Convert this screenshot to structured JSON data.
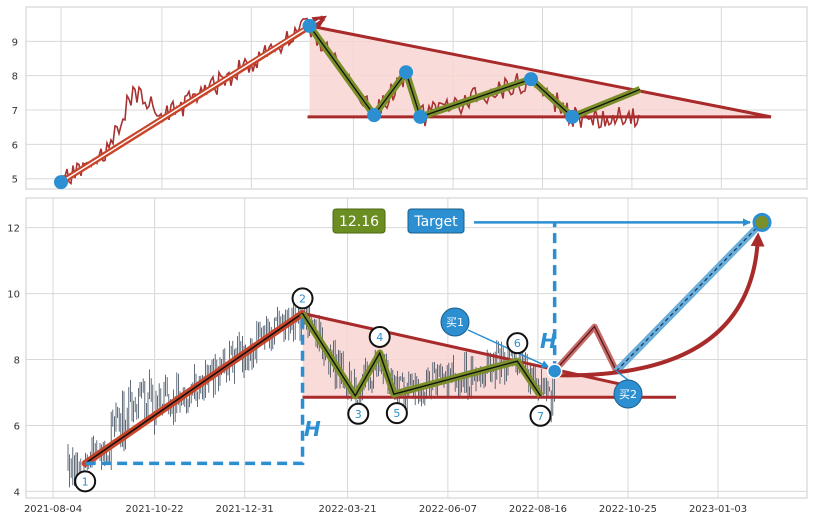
{
  "colors": {
    "price": "#a83232",
    "trend": "#c8452a",
    "zigzag": "#7a8f2a",
    "triangle_fill": "#f8d6d2",
    "triangle_edge": "#a82a2a",
    "accent": "#2b8fd2",
    "candle": "#3a4a5a",
    "grid": "#d8d8d8"
  },
  "chart_data": [
    {
      "type": "line",
      "panel": "top",
      "title": "",
      "xlabel": "",
      "ylabel": "",
      "ylim": [
        4.7,
        10.0
      ],
      "yticks": [
        "5",
        "6",
        "7",
        "8",
        "9"
      ],
      "grid": true,
      "pivots": [
        {
          "t": 0.0,
          "y": 4.9
        },
        {
          "t": 0.35,
          "y": 9.45
        },
        {
          "t": 0.441,
          "y": 6.85
        },
        {
          "t": 0.486,
          "y": 8.1
        },
        {
          "t": 0.506,
          "y": 6.8
        },
        {
          "t": 0.662,
          "y": 7.9
        },
        {
          "t": 0.72,
          "y": 6.8
        }
      ]
    },
    {
      "type": "candlestick",
      "panel": "bottom",
      "title": "",
      "xlabel": "",
      "ylabel": "",
      "ylim": [
        3.8,
        12.9
      ],
      "yticks": [
        "4",
        "6",
        "8",
        "10",
        "12"
      ],
      "xticks": [
        "2021-08-04",
        "2021-10-22",
        "2021-12-31",
        "2022-03-21",
        "2022-06-07",
        "2022-08-16",
        "2022-10-25",
        "2023-01-03"
      ],
      "grid": true,
      "pivot_labels": [
        "1",
        "2",
        "3",
        "4",
        "5",
        "6",
        "7"
      ],
      "pivots": [
        {
          "date": "2021-08-29",
          "y": 4.85
        },
        {
          "date": "2022-02-14",
          "y": 9.4
        },
        {
          "date": "2022-03-27",
          "y": 6.9
        },
        {
          "date": "2022-04-15",
          "y": 8.2
        },
        {
          "date": "2022-04-26",
          "y": 6.95
        },
        {
          "date": "2022-07-31",
          "y": 7.95
        },
        {
          "date": "2022-08-18",
          "y": 6.9
        }
      ],
      "projection": [
        {
          "date": "2022-08-29",
          "y": 7.65
        },
        {
          "date": "2022-09-29",
          "y": 9.0
        },
        {
          "date": "2022-10-16",
          "y": 7.65
        }
      ],
      "target_value": "12.16",
      "target_label": "Target",
      "height_marker": "H",
      "buy_points": [
        {
          "label": "买1",
          "date": "2022-08-29",
          "y": 7.65
        },
        {
          "label": "买2",
          "date": "2022-10-18",
          "y": 6.75
        }
      ]
    }
  ]
}
